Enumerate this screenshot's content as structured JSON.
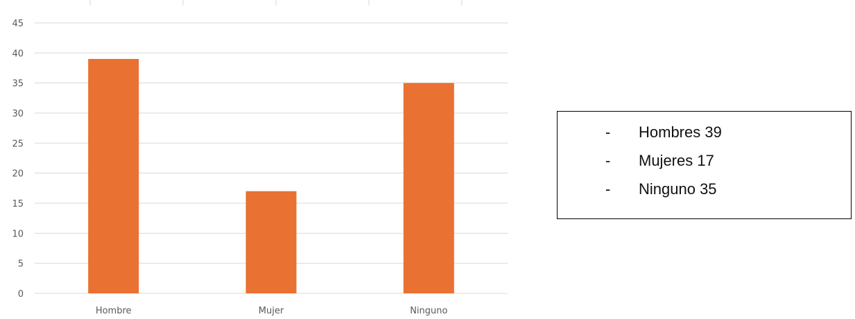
{
  "chart_data": {
    "type": "bar",
    "categories": [
      "Hombre",
      "Mujer",
      "Ninguno"
    ],
    "values": [
      39,
      17,
      35
    ],
    "title": "",
    "xlabel": "",
    "ylabel": "",
    "ylim": [
      0,
      45
    ],
    "yticks": [
      "0",
      "5",
      "10",
      "15",
      "20",
      "25",
      "30",
      "35",
      "40",
      "45"
    ],
    "grid": true,
    "legend": "none",
    "bar_color": "#E97132",
    "grid_color": "#D9D9D9"
  },
  "text_box": {
    "items": [
      {
        "bullet": "-",
        "text": "Hombres 39"
      },
      {
        "bullet": "-",
        "text": "Mujeres 17"
      },
      {
        "bullet": "-",
        "text": "Ninguno 35"
      }
    ]
  }
}
